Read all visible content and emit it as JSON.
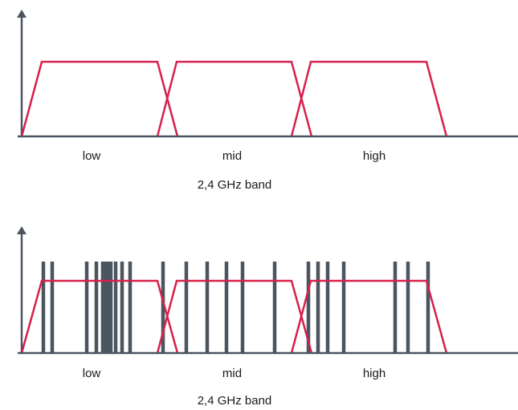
{
  "colors": {
    "axis": "#4b5560",
    "band": "#d6204b",
    "signal": "#4b5560",
    "text": "#1a1a1a"
  },
  "panels": [
    {
      "id": "top",
      "bands": [
        {
          "label": "low"
        },
        {
          "label": "mid"
        },
        {
          "label": "high"
        }
      ],
      "caption": "2,4 GHz band",
      "signal_lines": false
    },
    {
      "id": "bottom",
      "bands": [
        {
          "label": "low"
        },
        {
          "label": "mid"
        },
        {
          "label": "high"
        }
      ],
      "caption": "2,4 GHz band",
      "signal_lines": true
    }
  ]
}
